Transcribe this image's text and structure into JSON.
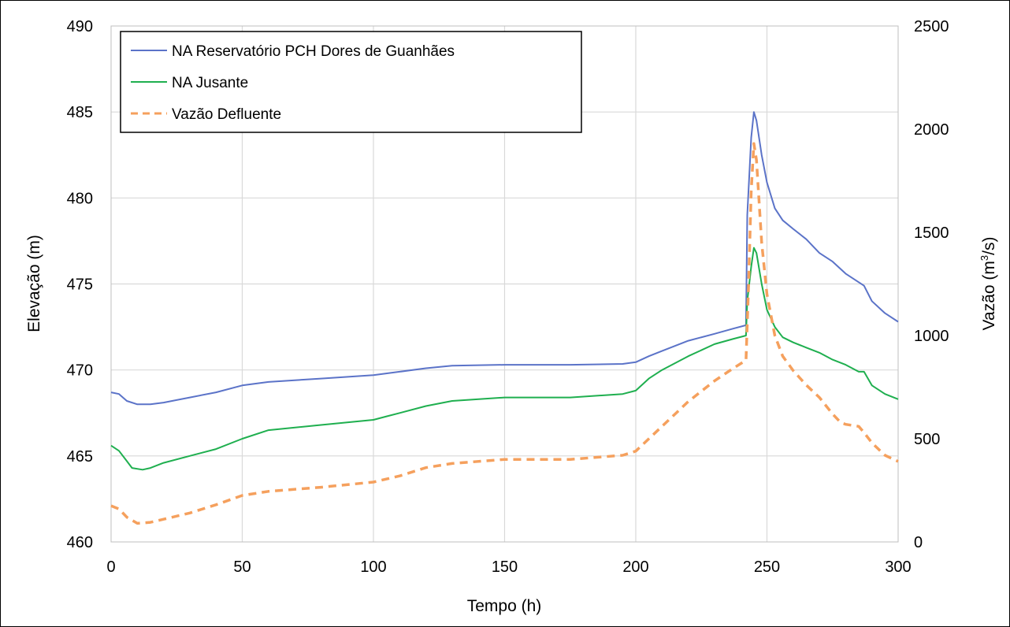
{
  "chart_data": {
    "type": "line",
    "xlabel": "Tempo  (h)",
    "ylabel_left": "Elevação (m)",
    "ylabel_right_prefix": "Vazão  (m",
    "ylabel_right_sup": "3",
    "ylabel_right_suffix": "/s)",
    "xlim": [
      0,
      300
    ],
    "ylim_left": [
      460,
      490
    ],
    "ylim_right": [
      0,
      2500
    ],
    "x_ticks": [
      "0",
      "50",
      "100",
      "150",
      "200",
      "250",
      "300"
    ],
    "y_left_ticks": [
      "460",
      "465",
      "470",
      "475",
      "480",
      "485",
      "490"
    ],
    "y_right_ticks": [
      "0",
      "500",
      "1000",
      "1500",
      "2000",
      "2500"
    ],
    "grid": true,
    "legend_position": "top-left",
    "series": [
      {
        "name": "NA Reservatório PCH Dores de Guanhães",
        "axis": "left",
        "color": "#5B73C8",
        "style": "solid",
        "x": [
          0,
          3,
          6,
          10,
          15,
          20,
          30,
          40,
          50,
          60,
          80,
          100,
          110,
          120,
          130,
          150,
          175,
          195,
          200,
          205,
          210,
          220,
          230,
          237,
          242,
          242.5,
          244,
          245,
          246,
          248,
          250,
          253,
          256,
          260,
          265,
          270,
          275,
          280,
          285,
          287,
          290,
          295,
          300
        ],
        "y": [
          468.7,
          468.6,
          468.2,
          468.0,
          468.0,
          468.1,
          468.4,
          468.7,
          469.1,
          469.3,
          469.5,
          469.7,
          469.9,
          470.1,
          470.25,
          470.3,
          470.3,
          470.35,
          470.45,
          470.8,
          471.1,
          471.7,
          472.1,
          472.4,
          472.6,
          479.0,
          483.5,
          485.0,
          484.5,
          482.5,
          480.9,
          479.4,
          478.7,
          478.2,
          477.6,
          476.8,
          476.3,
          475.6,
          475.1,
          474.9,
          474.0,
          473.3,
          472.8
        ]
      },
      {
        "name": "NA Jusante",
        "axis": "left",
        "color": "#1FAF4F",
        "style": "solid",
        "x": [
          0,
          3,
          6,
          8,
          12,
          15,
          20,
          30,
          40,
          50,
          60,
          80,
          100,
          105,
          110,
          120,
          130,
          150,
          175,
          195,
          200,
          205,
          210,
          220,
          230,
          237,
          242,
          242.5,
          244,
          245,
          246,
          248,
          250,
          253,
          256,
          260,
          265,
          270,
          275,
          280,
          285,
          287,
          290,
          295,
          300
        ],
        "y": [
          465.6,
          465.3,
          464.7,
          464.3,
          464.2,
          464.3,
          464.6,
          465.0,
          465.4,
          466.0,
          466.5,
          466.8,
          467.1,
          467.3,
          467.5,
          467.9,
          468.2,
          468.4,
          468.4,
          468.6,
          468.8,
          469.5,
          470.0,
          470.8,
          471.5,
          471.8,
          472.0,
          474.0,
          476.0,
          477.1,
          476.8,
          475.0,
          473.5,
          472.5,
          471.9,
          471.6,
          471.3,
          471.0,
          470.6,
          470.3,
          469.9,
          469.9,
          469.1,
          468.6,
          468.3
        ]
      },
      {
        "name": "Vazão Defluente",
        "axis": "right",
        "color": "#F5A05D",
        "style": "dashed",
        "x": [
          0,
          3,
          6,
          10,
          15,
          20,
          30,
          40,
          50,
          60,
          80,
          100,
          110,
          120,
          130,
          150,
          175,
          195,
          200,
          205,
          210,
          220,
          230,
          237,
          242,
          243,
          244,
          245,
          246,
          247,
          248,
          250,
          253,
          256,
          260,
          265,
          270,
          275,
          278,
          280,
          285,
          287,
          290,
          295,
          300
        ],
        "y": [
          175,
          160,
          120,
          90,
          95,
          110,
          140,
          180,
          225,
          245,
          265,
          290,
          320,
          360,
          380,
          400,
          400,
          420,
          440,
          500,
          560,
          680,
          780,
          840,
          880,
          1250,
          1700,
          1930,
          1850,
          1650,
          1450,
          1200,
          1000,
          900,
          830,
          760,
          700,
          620,
          580,
          570,
          560,
          530,
          480,
          420,
          390
        ]
      }
    ]
  }
}
